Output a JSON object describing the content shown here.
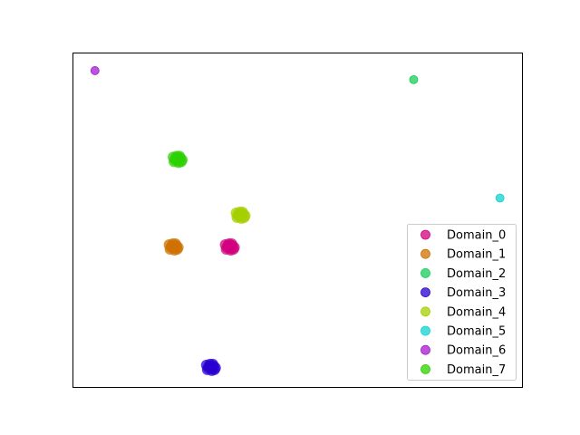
{
  "chart_data": {
    "type": "scatter",
    "title": "",
    "xlabel": "",
    "ylabel": "",
    "xlim": [
      0,
      100
    ],
    "ylim": [
      0,
      100
    ],
    "axes_ticks": false,
    "grid": false,
    "legend": "lower-right",
    "series": [
      {
        "name": "Domain_0",
        "color": "#d1007f",
        "cluster": true,
        "points": [
          [
            35,
            42
          ]
        ]
      },
      {
        "name": "Domain_1",
        "color": "#cf7200",
        "cluster": true,
        "points": [
          [
            22.5,
            42
          ]
        ]
      },
      {
        "name": "Domain_2",
        "color": "#19cc5a",
        "cluster": false,
        "points": [
          [
            75.9,
            91.9
          ]
        ]
      },
      {
        "name": "Domain_3",
        "color": "#2a00d0",
        "cluster": true,
        "points": [
          [
            30.8,
            6
          ]
        ]
      },
      {
        "name": "Domain_4",
        "color": "#a6cf00",
        "cluster": true,
        "points": [
          [
            37.4,
            51.5
          ]
        ]
      },
      {
        "name": "Domain_5",
        "color": "#12d2cf",
        "cluster": false,
        "points": [
          [
            95.1,
            56.5
          ]
        ]
      },
      {
        "name": "Domain_6",
        "color": "#a61bcf",
        "cluster": false,
        "points": [
          [
            5,
            94.6
          ]
        ]
      },
      {
        "name": "Domain_7",
        "color": "#2dd000",
        "cluster": true,
        "points": [
          [
            23.4,
            68.2
          ]
        ]
      }
    ]
  }
}
